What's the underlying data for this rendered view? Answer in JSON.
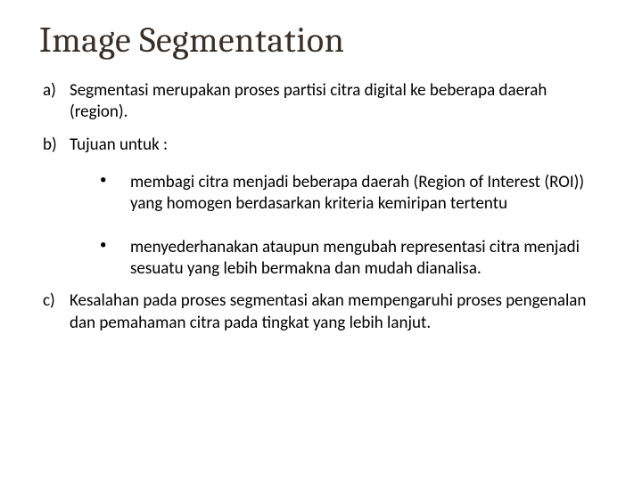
{
  "title": "Image Segmentation",
  "items": {
    "a": "Segmentasi merupakan proses partisi citra digital ke beberapa daerah (region).",
    "b": "Tujuan untuk :",
    "b_sub": [
      "membagi citra menjadi beberapa daerah (Region of Interest (ROI)) yang homogen berdasarkan kriteria kemiripan tertentu",
      "menyederhanakan ataupun mengubah representasi citra menjadi sesuatu yang lebih bermakna dan mudah dianalisa."
    ],
    "c": "Kesalahan pada proses segmentasi akan mempengaruhi proses pengenalan dan pemahaman citra pada tingkat yang lebih lanjut."
  },
  "colors": {
    "title": "#3a3028",
    "body": "#000000",
    "background": "#ffffff"
  },
  "fonts": {
    "title_family": "Cambria",
    "body_family": "Calibri",
    "title_size_pt": 30,
    "body_size_pt": 14
  }
}
